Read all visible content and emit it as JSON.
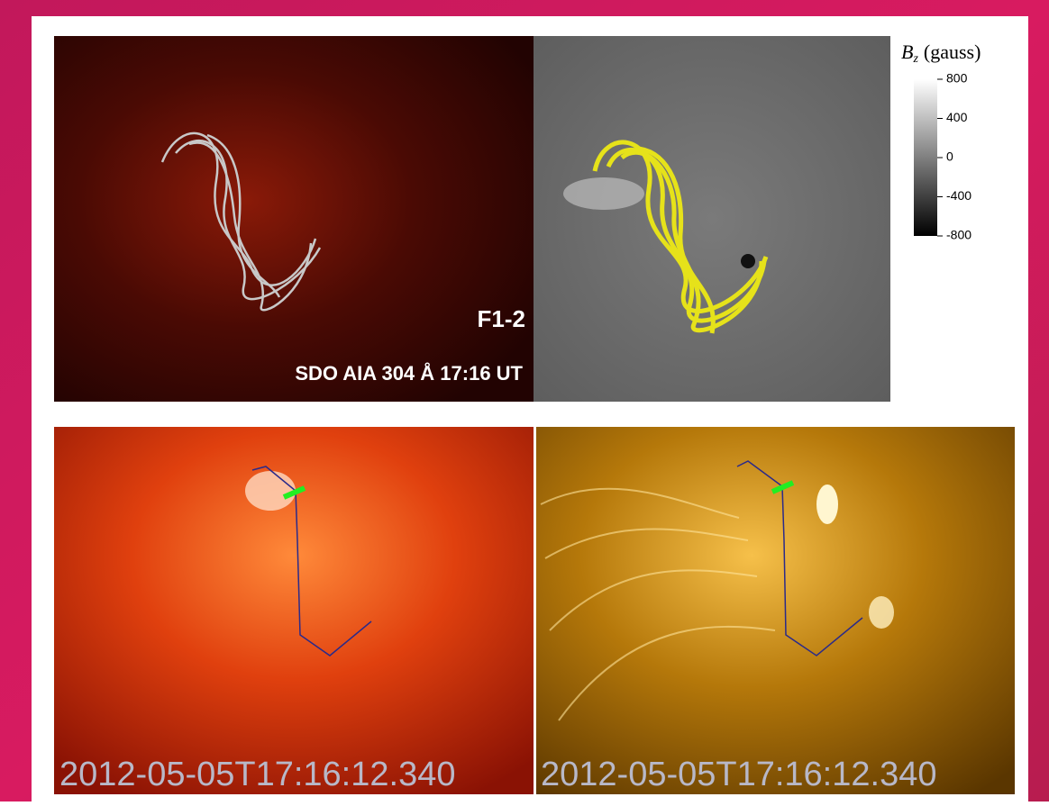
{
  "panels": {
    "top_left": {
      "flux_label": "F1-2",
      "instrument_label": "SDO AIA 304 Å 17:16 UT"
    },
    "colorbar": {
      "symbol": "B",
      "subscript": "z",
      "unit": "(gauss)",
      "range": [
        -800,
        800
      ],
      "ticks": [
        800,
        400,
        0,
        -400,
        -800
      ]
    },
    "bottom_left": {
      "timestamp": "2012-05-05T17:16:12.340"
    },
    "bottom_right": {
      "timestamp": "2012-05-05T17:16:12.340"
    }
  }
}
